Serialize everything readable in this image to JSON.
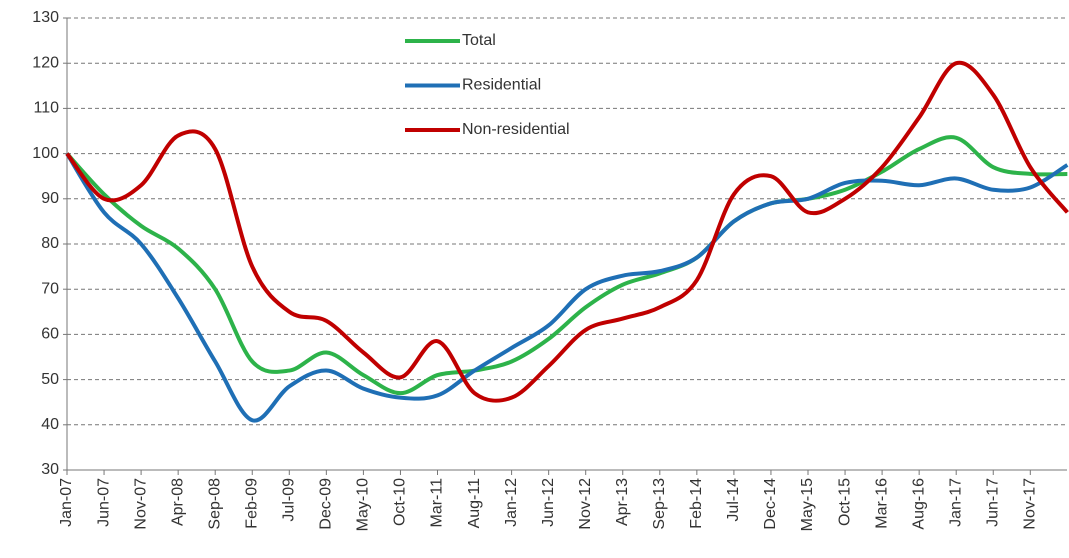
{
  "chart_data": {
    "type": "line",
    "categories": [
      "Jan-07",
      "Jun-07",
      "Nov-07",
      "Apr-08",
      "Sep-08",
      "Feb-09",
      "Jul-09",
      "Dec-09",
      "May-10",
      "Oct-10",
      "Mar-11",
      "Aug-11",
      "Jan-12",
      "Jun-12",
      "Nov-12",
      "Apr-13",
      "Sep-13",
      "Feb-14",
      "Jul-14",
      "Dec-14",
      "May-15",
      "Oct-15",
      "Mar-16",
      "Aug-16",
      "Jan-17",
      "Jun-17",
      "Nov-17",
      null
    ],
    "series": [
      {
        "name": "Total",
        "color": "#2db34a",
        "values": [
          100,
          91,
          84,
          79,
          70,
          54,
          52,
          56,
          51,
          47,
          51,
          52,
          54,
          59,
          66,
          71,
          73.5,
          77,
          85,
          89,
          90,
          92,
          96,
          101,
          103.5,
          97,
          95.5,
          95.5
        ]
      },
      {
        "name": "Residential",
        "color": "#1f6fb5",
        "values": [
          100,
          87,
          80,
          68,
          54,
          41,
          48.5,
          52,
          48,
          46,
          46.5,
          52,
          57,
          62,
          70,
          73,
          74,
          77,
          85,
          89,
          90,
          93.5,
          94,
          93,
          94.5,
          92,
          92.5,
          97.5
        ]
      },
      {
        "name": "Non-residential",
        "color": "#c00000",
        "values": [
          100,
          90,
          93,
          104,
          101,
          75,
          65,
          63,
          56,
          50.5,
          58.5,
          47,
          46,
          53,
          61,
          63.5,
          66,
          72,
          91,
          95,
          87,
          90,
          97,
          108,
          120,
          113,
          97,
          87
        ]
      }
    ],
    "ylim": [
      30,
      130
    ],
    "yticks": [
      30,
      40,
      50,
      60,
      70,
      80,
      90,
      100,
      110,
      120,
      130
    ],
    "grid": true
  }
}
